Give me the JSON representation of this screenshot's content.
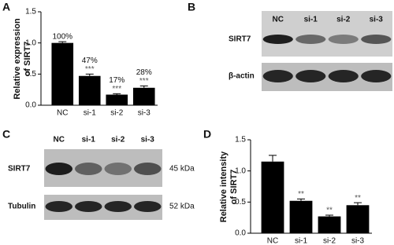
{
  "panels": [
    "A",
    "B",
    "C",
    "D"
  ],
  "chart_data": [
    {
      "type": "bar",
      "ylabel": [
        "Relative expression",
        "of SIRT7"
      ],
      "categories": [
        "NC",
        "si-1",
        "si-2",
        "si-3"
      ],
      "values": [
        1.0,
        0.47,
        0.17,
        0.28
      ],
      "errors": [
        0.02,
        0.03,
        0.015,
        0.03
      ],
      "value_labels": [
        "100%",
        "47%",
        "17%",
        "28%"
      ],
      "significance": [
        null,
        "***",
        "***",
        "***"
      ],
      "color": "#000000",
      "ylim": [
        0,
        1.5
      ],
      "yticks": [
        {
          "value": 0,
          "label": "0.0"
        },
        0.5,
        {
          "value": 1,
          "label": "1.0"
        },
        1.5
      ]
    },
    {
      "type": "bar",
      "ylabel": [
        "Relative intensity",
        "of SIRT7"
      ],
      "categories": [
        "NC",
        "si-1",
        "si-2",
        "si-3"
      ],
      "values": [
        1.15,
        0.52,
        0.27,
        0.45
      ],
      "errors": [
        0.1,
        0.03,
        0.02,
        0.04
      ],
      "significance": [
        null,
        "**",
        "**",
        "**"
      ],
      "color": "#000000",
      "ylim": [
        0,
        1.5
      ],
      "yticks": [
        {
          "value": 0,
          "label": "0.0"
        },
        0.5,
        {
          "value": 1,
          "label": "1.0"
        },
        1.5
      ]
    }
  ],
  "blots": [
    {
      "lanes": [
        "NC",
        "si-1",
        "si-2",
        "si-3"
      ],
      "rows": [
        "SIRT7",
        "β-actin"
      ]
    },
    {
      "lanes": [
        "NC",
        "si-1",
        "si-2",
        "si-3"
      ],
      "rows": [
        "SIRT7",
        "Tubulin"
      ],
      "sizes": [
        "45 kDa",
        "52 kDa"
      ]
    }
  ]
}
